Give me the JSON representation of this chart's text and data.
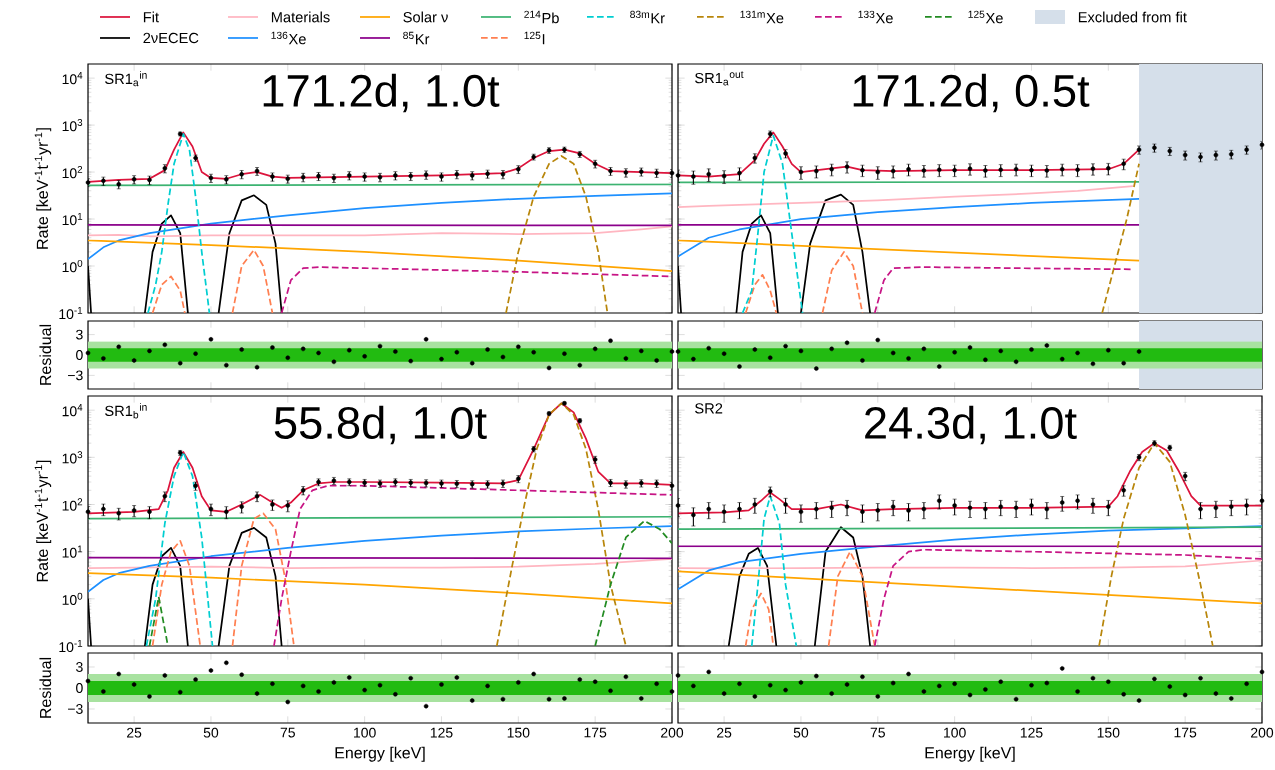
{
  "chart_data": [
    {
      "type": "line",
      "title": "171.2d, 1.0t",
      "annotations": [
        "SR1$_{a}$$^{in}$"
      ],
      "ylabel": "Rate [keV$^{-1}$t$^{-1}$yr$^{-1}$]",
      "log": "y",
      "xlim": [
        10,
        200
      ],
      "ylim": [
        0.1,
        20000
      ],
      "xticks": [
        25,
        50,
        75,
        100,
        125,
        150,
        175,
        200
      ],
      "yticks": [
        {
          "value": 0.1,
          "label": "10$^{-1}$"
        },
        {
          "value": 1,
          "label": "10$^{0}$"
        },
        {
          "value": 10,
          "label": "10$^{1}$"
        },
        {
          "value": 100,
          "label": "10$^{2}$"
        },
        {
          "value": 1000,
          "label": "10$^{3}$"
        },
        {
          "value": 10000,
          "label": "10$^{4}$"
        }
      ],
      "tick_labels": "y",
      "series": [
        {
          "color": "#dc143c",
          "x": [
            10,
            20,
            30,
            35,
            38,
            41,
            44,
            47,
            50,
            55,
            60,
            65,
            70,
            75,
            100,
            125,
            145,
            150,
            155,
            160,
            165,
            170,
            175,
            180,
            190,
            200
          ],
          "values": [
            62,
            68,
            72,
            110,
            300,
            700,
            350,
            100,
            75,
            72,
            90,
            100,
            80,
            75,
            80,
            85,
            95,
            120,
            200,
            280,
            300,
            250,
            150,
            105,
            100,
            95
          ]
        },
        {
          "color": "#000000",
          "x": [
            10,
            11,
            20,
            28.5,
            31,
            34,
            37,
            40,
            42.5,
            48,
            52.5,
            56,
            60,
            64,
            68,
            71,
            73
          ],
          "values": [
            1.0,
            0.1,
            null,
            0.1,
            2,
            8,
            12,
            5,
            0.1,
            null,
            0.1,
            5,
            25,
            32,
            20,
            3,
            0.1
          ]
        },
        {
          "color": "#ffb6c1",
          "x": [
            10,
            20,
            30,
            50,
            75,
            100,
            125,
            150,
            175,
            190,
            200
          ],
          "values": [
            4.5,
            4.6,
            4.3,
            4.5,
            4.5,
            4.5,
            5,
            4.8,
            5,
            6,
            7
          ]
        },
        {
          "color": "#1e90ff",
          "x": [
            10,
            15,
            20,
            30,
            50,
            75,
            100,
            125,
            150,
            175,
            200
          ],
          "values": [
            1.4,
            2.5,
            3.5,
            5,
            8,
            12,
            17,
            22,
            27,
            31,
            35
          ]
        },
        {
          "color": "#ffa500",
          "x": [
            10,
            50,
            100,
            150,
            200
          ],
          "values": [
            3.5,
            2.8,
            2,
            1.3,
            0.78
          ]
        },
        {
          "color": "#8b008b",
          "x": [
            10,
            200
          ],
          "values": [
            7.5,
            7.3
          ]
        },
        {
          "color": "#3cb371",
          "x": [
            10,
            200
          ],
          "values": [
            52,
            55
          ]
        },
        {
          "color": "#ff7f50",
          "line_style": "dashed",
          "x": [
            31,
            34,
            37,
            40,
            41.5,
            50,
            57,
            60,
            64,
            67,
            70
          ],
          "values": [
            0.1,
            0.4,
            0.6,
            0.3,
            0.1,
            null,
            0.1,
            1,
            2.2,
            1,
            0.1
          ]
        },
        {
          "color": "#00ced1",
          "line_style": "dashed",
          "x": [
            29.5,
            32,
            34,
            36,
            38,
            41,
            43,
            45,
            47,
            49.5
          ],
          "values": [
            0.1,
            0.4,
            2,
            20,
            150,
            650,
            300,
            30,
            2,
            0.1
          ]
        },
        {
          "color": "#b8860b",
          "line_style": "dashed",
          "x": [
            146,
            150,
            155,
            160,
            164,
            168,
            172,
            176,
            179
          ],
          "values": [
            0.1,
            2,
            30,
            150,
            220,
            150,
            30,
            2,
            0.1
          ]
        },
        {
          "color": "#c71585",
          "line_style": "dashed",
          "x": [
            73,
            76,
            80,
            85,
            100,
            150,
            200
          ],
          "values": [
            0.1,
            0.5,
            0.9,
            0.95,
            0.9,
            0.75,
            0.6
          ]
        },
        {
          "type": "scatter",
          "color": "#000000",
          "x": [
            10,
            15,
            20,
            25,
            30,
            35,
            40,
            45,
            50,
            55,
            60,
            65,
            70,
            75,
            80,
            85,
            90,
            95,
            100,
            105,
            110,
            115,
            120,
            125,
            130,
            135,
            140,
            145,
            150,
            155,
            160,
            165,
            170,
            175,
            180,
            185,
            190,
            195,
            200
          ],
          "values": [
            60,
            65,
            55,
            70,
            68,
            120,
            650,
            200,
            75,
            70,
            90,
            105,
            80,
            72,
            78,
            82,
            75,
            85,
            80,
            78,
            85,
            82,
            88,
            80,
            90,
            85,
            92,
            90,
            115,
            210,
            290,
            300,
            240,
            150,
            105,
            98,
            102,
            96,
            95
          ],
          "errors": [
            12,
            13,
            11,
            14,
            14,
            24,
            60,
            30,
            15,
            14,
            18,
            20,
            16,
            14,
            16,
            16,
            15,
            17,
            16,
            16,
            17,
            16,
            18,
            16,
            18,
            17,
            18,
            18,
            22,
            30,
            40,
            40,
            35,
            28,
            20,
            20,
            20,
            19,
            19
          ]
        }
      ]
    },
    {
      "type": "line",
      "title": "171.2d, 0.5t",
      "annotations": [
        "SR1$_{a}$$^{out}$"
      ],
      "log": "y",
      "xlim": [
        10,
        200
      ],
      "ylim": [
        0.1,
        20000
      ],
      "xticks": [
        25,
        50,
        75,
        100,
        125,
        150,
        175,
        200
      ],
      "yticks": [
        0.1,
        1,
        10,
        100,
        1000,
        10000
      ],
      "tick_labels": false,
      "bands": [
        {
          "axis": "x",
          "from": 160,
          "to": 200,
          "label": "Excluded from fit",
          "color": "#d5dfea"
        }
      ],
      "series": [
        {
          "color": "#dc143c",
          "x": [
            10,
            20,
            30,
            35,
            38,
            41,
            44,
            47,
            50,
            60,
            65,
            70,
            80,
            100,
            125,
            150,
            155,
            160
          ],
          "values": [
            85,
            80,
            90,
            180,
            400,
            700,
            350,
            150,
            100,
            120,
            130,
            110,
            105,
            110,
            110,
            115,
            150,
            300
          ]
        },
        {
          "color": "#000000",
          "x": [
            10,
            11,
            20,
            29,
            31,
            34,
            37,
            40,
            42.5,
            46,
            50,
            53,
            58,
            63,
            67,
            70,
            72.5
          ],
          "values": [
            1.0,
            0.1,
            null,
            0.1,
            2,
            8,
            12,
            5,
            0.1,
            null,
            0.1,
            3,
            25,
            33,
            20,
            2,
            0.1
          ]
        },
        {
          "color": "#ffb6c1",
          "x": [
            10,
            20,
            30,
            50,
            75,
            100,
            125,
            140,
            158
          ],
          "values": [
            18,
            19,
            20,
            22,
            25,
            30,
            35,
            40,
            50
          ]
        },
        {
          "color": "#1e90ff",
          "x": [
            10,
            20,
            30,
            50,
            75,
            100,
            125,
            160
          ],
          "values": [
            1.6,
            4,
            6,
            10,
            14,
            18,
            22,
            27
          ]
        },
        {
          "color": "#ffa500",
          "x": [
            10,
            160
          ],
          "values": [
            3.5,
            1.3
          ]
        },
        {
          "color": "#8b008b",
          "x": [
            10,
            160
          ],
          "values": [
            7.5,
            7.5
          ]
        },
        {
          "color": "#3cb371",
          "x": [
            10,
            160
          ],
          "values": [
            60,
            62
          ]
        },
        {
          "color": "#ff7f50",
          "line_style": "dashed",
          "x": [
            32,
            35,
            37.5,
            40,
            42,
            50,
            57,
            60,
            64,
            67,
            70
          ],
          "values": [
            0.1,
            0.4,
            0.65,
            0.3,
            0.1,
            null,
            0.1,
            0.8,
            2,
            1,
            0.1
          ]
        },
        {
          "color": "#00ced1",
          "line_style": "dashed",
          "x": [
            31,
            34,
            36,
            38,
            41,
            44,
            47,
            50.5
          ],
          "values": [
            0.1,
            0.3,
            5,
            100,
            600,
            150,
            5,
            0.1
          ]
        },
        {
          "color": "#b8860b",
          "line_style": "dashed",
          "x": [
            148,
            152,
            156,
            160
          ],
          "values": [
            0.1,
            1,
            10,
            150
          ]
        },
        {
          "color": "#c71585",
          "line_style": "dashed",
          "x": [
            74,
            77,
            80,
            90,
            120,
            158
          ],
          "values": [
            0.1,
            0.5,
            0.9,
            0.95,
            0.9,
            0.85
          ]
        },
        {
          "type": "scatter",
          "color": "#000000",
          "x": [
            10,
            15,
            20,
            25,
            30,
            35,
            40,
            45,
            50,
            55,
            60,
            65,
            70,
            75,
            80,
            85,
            90,
            95,
            100,
            105,
            110,
            115,
            120,
            125,
            130,
            135,
            140,
            145,
            150,
            155,
            160,
            165,
            170,
            175,
            180,
            185,
            190,
            195,
            200
          ],
          "values": [
            85,
            80,
            90,
            82,
            95,
            200,
            650,
            250,
            100,
            105,
            115,
            130,
            110,
            100,
            105,
            115,
            108,
            112,
            110,
            118,
            108,
            112,
            115,
            110,
            108,
            115,
            112,
            118,
            120,
            150,
            300,
            330,
            280,
            230,
            210,
            230,
            240,
            300,
            380
          ],
          "errors": [
            25,
            25,
            27,
            25,
            28,
            45,
            100,
            50,
            30,
            30,
            32,
            35,
            30,
            30,
            30,
            32,
            30,
            32,
            30,
            32,
            30,
            32,
            32,
            30,
            30,
            32,
            32,
            32,
            33,
            38,
            60,
            65,
            55,
            50,
            45,
            50,
            50,
            60,
            70
          ]
        }
      ]
    },
    {
      "type": "scatter",
      "ylabel": "Residual",
      "xlim": [
        10,
        200
      ],
      "ylim": [
        -5,
        5
      ],
      "xticks": [
        25,
        50,
        75,
        100,
        125,
        150,
        175,
        200
      ],
      "yticks": [
        3,
        0,
        {
          "value": -3,
          "label": "−3"
        }
      ],
      "tick_labels": "y",
      "bands": [
        {
          "axis": "y",
          "from": -2,
          "to": 2,
          "color": "#a8e2a0"
        },
        {
          "axis": "y",
          "from": -1,
          "to": 1,
          "color": "#22bb11"
        }
      ],
      "series": [
        {
          "color": "#000000",
          "x": [
            10,
            15,
            20,
            25,
            30,
            35,
            40,
            45,
            50,
            55,
            60,
            65,
            70,
            75,
            80,
            85,
            90,
            95,
            100,
            105,
            110,
            115,
            120,
            125,
            130,
            135,
            140,
            145,
            150,
            155,
            160,
            165,
            170,
            175,
            180,
            185,
            190,
            195,
            200
          ],
          "values": [
            0.3,
            -0.5,
            1.2,
            -0.8,
            0.6,
            1.5,
            -1.2,
            0.2,
            2.3,
            -1.5,
            0.8,
            -1.8,
            1.1,
            -0.4,
            0.9,
            0.3,
            -1,
            0.7,
            -0.2,
            1.3,
            0.5,
            -0.9,
            2.3,
            -0.6,
            0.4,
            -1.2,
            0.8,
            -0.3,
            1.2,
            0.4,
            -1.9,
            0.2,
            -1.5,
            0.9,
            2.1,
            -0.5,
            0.6,
            -0.8,
            0.5
          ]
        }
      ]
    },
    {
      "type": "scatter",
      "xlim": [
        10,
        200
      ],
      "ylim": [
        -5,
        5
      ],
      "xticks": [
        25,
        50,
        75,
        100,
        125,
        150,
        175,
        200
      ],
      "yticks": [
        3,
        0,
        -3
      ],
      "tick_labels": false,
      "bands": [
        {
          "axis": "x",
          "from": 160,
          "to": 200,
          "color": "#d5dfea"
        },
        {
          "axis": "y",
          "from": -2,
          "to": 2,
          "color": "#a8e2a0"
        },
        {
          "axis": "y",
          "from": -1,
          "to": 1,
          "color": "#22bb11"
        }
      ],
      "series": [
        {
          "color": "#000000",
          "x": [
            10,
            15,
            20,
            25,
            30,
            35,
            40,
            45,
            50,
            55,
            60,
            65,
            70,
            75,
            80,
            85,
            90,
            95,
            100,
            105,
            110,
            115,
            120,
            125,
            130,
            135,
            140,
            145,
            150,
            155,
            160
          ],
          "values": [
            0.5,
            -0.6,
            1.0,
            0.2,
            -1.7,
            0.8,
            -0.4,
            1.3,
            0.6,
            -2.0,
            0.9,
            1.8,
            -0.8,
            2.2,
            0.3,
            -0.5,
            0.9,
            -1.7,
            0.4,
            1.1,
            -0.7,
            0.6,
            -1.0,
            0.8,
            1.4,
            -0.6,
            0.3,
            -1.3,
            0.7,
            -1.2,
            0.5
          ]
        }
      ]
    },
    {
      "type": "line",
      "title": "55.8d, 1.0t",
      "annotations": [
        "SR1$_{b}$$^{in}$"
      ],
      "ylabel": "Rate [keV$^{-1}$t$^{-1}$yr$^{-1}$]",
      "log": "y",
      "legend": "top",
      "xlim": [
        10,
        200
      ],
      "ylim": [
        0.1,
        20000
      ],
      "xticks": [
        25,
        50,
        75,
        100,
        125,
        150,
        175,
        200
      ],
      "yticks": [
        {
          "value": 0.1,
          "label": "10$^{-1}$"
        },
        {
          "value": 1,
          "label": "10$^{0}$"
        },
        {
          "value": 10,
          "label": "10$^{1}$"
        },
        {
          "value": 100,
          "label": "10$^{2}$"
        },
        {
          "value": 1000,
          "label": "10$^{3}$"
        },
        {
          "value": 10000,
          "label": "10$^{4}$"
        }
      ],
      "tick_labels": "y",
      "series": [
        {
          "name": "Fit",
          "color": "#dc143c",
          "x": [
            10,
            25,
            33,
            36,
            38,
            41,
            44,
            47,
            50,
            55,
            60,
            66,
            70,
            73,
            76,
            80,
            85,
            90,
            100,
            125,
            145,
            150,
            155,
            160,
            164,
            168,
            172,
            176,
            180,
            190,
            200
          ],
          "values": [
            65,
            70,
            80,
            200,
            600,
            1300,
            600,
            150,
            75,
            70,
            100,
            160,
            110,
            85,
            110,
            200,
            280,
            300,
            300,
            290,
            280,
            330,
            1500,
            8000,
            14000,
            9000,
            2500,
            500,
            280,
            280,
            260
          ]
        },
        {
          "name": "2νECEC",
          "color": "#000000",
          "x": [
            10,
            11,
            20,
            28.5,
            31,
            34,
            37,
            40,
            42.5,
            48,
            52.5,
            56,
            60,
            64,
            68,
            71,
            73
          ],
          "values": [
            1.0,
            0.1,
            null,
            0.1,
            2,
            8,
            12,
            5,
            0.1,
            null,
            0.1,
            5,
            25,
            32,
            20,
            3,
            0.1
          ]
        },
        {
          "name": "Materials",
          "color": "#ffb6c1",
          "x": [
            10,
            25,
            50,
            75,
            100,
            125,
            150,
            175,
            200
          ],
          "values": [
            4.5,
            4.6,
            4.8,
            4.5,
            4.6,
            4.6,
            4.8,
            5.5,
            7
          ]
        },
        {
          "name": "$^{136}$Xe",
          "color": "#1e90ff",
          "x": [
            10,
            15,
            20,
            30,
            50,
            75,
            100,
            125,
            150,
            175,
            200
          ],
          "values": [
            1.4,
            2.5,
            3.5,
            5,
            8,
            12,
            17,
            22,
            27,
            31,
            35
          ]
        },
        {
          "name": "Solar ν",
          "color": "#ffa500",
          "x": [
            10,
            50,
            100,
            150,
            200
          ],
          "values": [
            3.5,
            2.8,
            2,
            1.3,
            0.8
          ]
        },
        {
          "name": "$^{85}$Kr",
          "color": "#8b008b",
          "x": [
            10,
            200
          ],
          "values": [
            7.5,
            7.2
          ]
        },
        {
          "name": "$^{214}$Pb",
          "color": "#3cb371",
          "x": [
            10,
            200
          ],
          "values": [
            50,
            55
          ]
        },
        {
          "name": "$^{125}$I",
          "color": "#ff7f50",
          "line_style": "dashed",
          "x": [
            31,
            34,
            37,
            40,
            43,
            46.5,
            50,
            57,
            60,
            64,
            67,
            71,
            74,
            77
          ],
          "values": [
            0.1,
            2,
            10,
            17,
            5,
            0.1,
            null,
            0.1,
            5,
            50,
            65,
            30,
            3,
            0.1
          ]
        },
        {
          "name": "$^{83m}$Kr",
          "color": "#00ced1",
          "line_style": "dashed",
          "x": [
            29,
            32,
            35,
            38,
            41,
            44,
            47,
            50.5
          ],
          "values": [
            0.1,
            1,
            40,
            400,
            1300,
            400,
            20,
            0.1
          ]
        },
        {
          "name": "$^{131m}$Xe",
          "color": "#b8860b",
          "line_style": "dashed",
          "x": [
            143,
            148,
            152,
            156,
            160,
            164,
            168,
            172,
            176,
            180,
            185
          ],
          "values": [
            0.1,
            5,
            100,
            1500,
            8000,
            14000,
            8000,
            1500,
            80,
            2,
            0.1
          ]
        },
        {
          "name": "$^{133}$Xe",
          "color": "#c71585",
          "line_style": "dashed",
          "x": [
            70.5,
            73,
            76,
            79,
            83,
            88,
            100,
            150,
            200
          ],
          "values": [
            0.1,
            1,
            10,
            80,
            200,
            250,
            250,
            200,
            160
          ]
        },
        {
          "name": "$^{125}$Xe",
          "color": "#228b22",
          "line_style": "dashed",
          "x": [
            30,
            33,
            36,
            100,
            175,
            180,
            185,
            191,
            196,
            200
          ],
          "values": [
            0.1,
            1.1,
            0.1,
            null,
            0.1,
            2,
            20,
            45,
            30,
            15
          ]
        },
        {
          "type": "scatter",
          "color": "#000000",
          "x": [
            10,
            15,
            20,
            25,
            30,
            35,
            40,
            45,
            50,
            55,
            60,
            65,
            70,
            75,
            80,
            85,
            90,
            95,
            100,
            105,
            110,
            115,
            120,
            125,
            130,
            135,
            140,
            145,
            150,
            155,
            160,
            165,
            170,
            175,
            180,
            185,
            190,
            195,
            200
          ],
          "values": [
            70,
            80,
            65,
            75,
            70,
            150,
            1250,
            250,
            80,
            70,
            90,
            150,
            100,
            95,
            200,
            300,
            320,
            300,
            290,
            280,
            300,
            290,
            285,
            280,
            275,
            270,
            270,
            280,
            350,
            1500,
            8500,
            14000,
            6000,
            900,
            290,
            270,
            285,
            280,
            250
          ],
          "errors": [
            20,
            22,
            18,
            20,
            20,
            35,
            150,
            50,
            22,
            20,
            24,
            35,
            25,
            25,
            40,
            50,
            55,
            50,
            50,
            50,
            50,
            50,
            50,
            50,
            48,
            48,
            48,
            50,
            60,
            200,
            700,
            1000,
            600,
            150,
            50,
            48,
            50,
            50,
            45
          ]
        }
      ]
    },
    {
      "type": "line",
      "title": "24.3d, 1.0t",
      "annotations": [
        "SR2"
      ],
      "log": "y",
      "xlim": [
        10,
        200
      ],
      "ylim": [
        0.1,
        20000
      ],
      "xticks": [
        25,
        50,
        75,
        100,
        125,
        150,
        175,
        200
      ],
      "yticks": [
        0.1,
        1,
        10,
        100,
        1000,
        10000
      ],
      "tick_labels": false,
      "series": [
        {
          "color": "#dc143c",
          "x": [
            10,
            25,
            33,
            37,
            40,
            43,
            47,
            55,
            63,
            70,
            80,
            100,
            125,
            150,
            153,
            157,
            161,
            165,
            169,
            173,
            177,
            180,
            200
          ],
          "values": [
            65,
            68,
            75,
            120,
            180,
            130,
            80,
            80,
            100,
            75,
            80,
            85,
            85,
            90,
            150,
            500,
            1300,
            2000,
            1400,
            500,
            150,
            95,
            95
          ]
        },
        {
          "color": "#000000",
          "x": [
            26.5,
            30,
            33,
            36,
            39,
            42,
            48,
            54.5,
            58,
            63,
            67,
            70,
            72.5
          ],
          "values": [
            0.1,
            3,
            9,
            12,
            5,
            0.1,
            null,
            0.1,
            10,
            33,
            20,
            3,
            0.1
          ]
        },
        {
          "color": "#ffb6c1",
          "x": [
            10,
            25,
            50,
            75,
            100,
            125,
            150,
            175,
            200
          ],
          "values": [
            4.5,
            4.4,
            4.5,
            4.6,
            4.6,
            4.5,
            4.6,
            4.9,
            6.5
          ]
        },
        {
          "color": "#1e90ff",
          "x": [
            10,
            20,
            30,
            50,
            75,
            100,
            125,
            150,
            200
          ],
          "values": [
            1.6,
            4,
            6,
            9,
            13,
            18,
            23,
            28,
            35
          ]
        },
        {
          "color": "#ffa500",
          "x": [
            10,
            200
          ],
          "values": [
            3.8,
            0.8
          ]
        },
        {
          "color": "#8b008b",
          "x": [
            10,
            200
          ],
          "values": [
            13,
            13
          ]
        },
        {
          "color": "#3cb371",
          "x": [
            10,
            200
          ],
          "values": [
            30,
            33
          ]
        },
        {
          "color": "#ff7f50",
          "line_style": "dashed",
          "x": [
            32,
            34,
            37,
            39.5,
            41,
            50,
            59,
            62,
            66,
            70,
            74
          ],
          "values": [
            0.1,
            0.6,
            1.3,
            0.6,
            0.1,
            null,
            0.1,
            3,
            10,
            3,
            0.1
          ]
        },
        {
          "color": "#00ced1",
          "line_style": "dashed",
          "x": [
            34,
            36,
            38,
            40,
            43,
            45,
            48.5
          ],
          "values": [
            0.1,
            2,
            50,
            150,
            40,
            2,
            0.1
          ]
        },
        {
          "color": "#b8860b",
          "line_style": "dashed",
          "x": [
            147,
            151,
            155,
            160,
            165,
            170,
            175,
            180,
            184
          ],
          "values": [
            0.1,
            3,
            50,
            600,
            2000,
            800,
            60,
            2,
            0.1
          ]
        },
        {
          "color": "#c71585",
          "line_style": "dashed",
          "x": [
            74,
            77,
            80,
            85,
            90,
            125,
            175,
            200
          ],
          "values": [
            0.1,
            1,
            5,
            10,
            11,
            10,
            8.5,
            7
          ]
        },
        {
          "type": "scatter",
          "color": "#000000",
          "x": [
            10,
            15,
            20,
            25,
            30,
            35,
            40,
            45,
            50,
            55,
            60,
            65,
            70,
            75,
            80,
            85,
            90,
            95,
            100,
            105,
            110,
            115,
            120,
            125,
            130,
            135,
            140,
            145,
            150,
            155,
            160,
            165,
            170,
            175,
            180,
            185,
            190,
            195,
            200
          ],
          "values": [
            95,
            60,
            80,
            70,
            80,
            100,
            190,
            100,
            70,
            80,
            85,
            90,
            70,
            75,
            90,
            75,
            80,
            120,
            95,
            85,
            80,
            90,
            85,
            95,
            80,
            110,
            120,
            100,
            90,
            200,
            1000,
            2000,
            1600,
            400,
            80,
            85,
            90,
            95,
            120
          ],
          "errors": [
            40,
            25,
            30,
            28,
            30,
            35,
            45,
            35,
            28,
            30,
            32,
            32,
            28,
            30,
            32,
            30,
            30,
            40,
            35,
            32,
            30,
            32,
            32,
            35,
            30,
            38,
            40,
            35,
            32,
            50,
            150,
            250,
            200,
            80,
            30,
            32,
            32,
            35,
            40
          ]
        }
      ]
    },
    {
      "type": "scatter",
      "ylabel": "Residual",
      "xlabel": "Energy [keV]",
      "xlim": [
        10,
        200
      ],
      "ylim": [
        -5,
        5
      ],
      "xticks": [
        25,
        50,
        75,
        100,
        125,
        150,
        175,
        200
      ],
      "yticks": [
        3,
        0,
        {
          "value": -3,
          "label": "−3"
        }
      ],
      "bands": [
        {
          "axis": "y",
          "from": -2,
          "to": 2,
          "color": "#a8e2a0"
        },
        {
          "axis": "y",
          "from": -1,
          "to": 1,
          "color": "#22bb11"
        }
      ],
      "series": [
        {
          "color": "#000000",
          "x": [
            10,
            15,
            20,
            25,
            30,
            35,
            40,
            45,
            50,
            55,
            60,
            65,
            70,
            75,
            80,
            85,
            90,
            95,
            100,
            105,
            110,
            115,
            120,
            125,
            130,
            135,
            140,
            145,
            150,
            155,
            160,
            165,
            170,
            175,
            180,
            185,
            190,
            195,
            200
          ],
          "values": [
            1,
            -0.5,
            2,
            0.5,
            -1.2,
            1.8,
            -0.6,
            1.2,
            2.5,
            3.6,
            1.9,
            -0.8,
            0.6,
            -2,
            0.3,
            -0.5,
            0.8,
            1.5,
            -0.3,
            0.4,
            -0.9,
            1.4,
            -2.6,
            0.5,
            1.5,
            -1.8,
            0.3,
            -1.6,
            0.8,
            2,
            -1.6,
            -1.5,
            1.2,
            0.9,
            -0.4,
            1.6,
            -1.5,
            0.6,
            -0.5
          ]
        }
      ]
    },
    {
      "type": "scatter",
      "xlabel": "Energy [keV]",
      "xlim": [
        10,
        200
      ],
      "ylim": [
        -5,
        5
      ],
      "xticks": [
        25,
        50,
        75,
        100,
        125,
        150,
        175,
        200
      ],
      "yticks": [
        3,
        0,
        -3
      ],
      "tick_labels": "x",
      "bands": [
        {
          "axis": "y",
          "from": -2,
          "to": 2,
          "color": "#a8e2a0"
        },
        {
          "axis": "y",
          "from": -1,
          "to": 1,
          "color": "#22bb11"
        }
      ],
      "series": [
        {
          "color": "#000000",
          "x": [
            10,
            15,
            20,
            25,
            30,
            35,
            40,
            45,
            50,
            55,
            60,
            65,
            70,
            75,
            80,
            85,
            90,
            95,
            100,
            105,
            110,
            115,
            120,
            125,
            130,
            135,
            140,
            145,
            150,
            155,
            160,
            165,
            170,
            175,
            180,
            185,
            190,
            195,
            200
          ],
          "values": [
            1.8,
            0.3,
            2.3,
            -0.8,
            0.6,
            -1.2,
            0.4,
            -0.3,
            0.8,
            1.7,
            -0.8,
            0.5,
            1.6,
            -1.2,
            0.7,
            2,
            -0.5,
            0.3,
            0.6,
            -1.0,
            -0.2,
            0.9,
            -1.6,
            0.4,
            0.7,
            2.8,
            -0.5,
            1.4,
            0.9,
            -0.9,
            -1.8,
            1.3,
            0.2,
            -1.0,
            1.4,
            -0.8,
            -1.5,
            0.6,
            2.3
          ]
        }
      ]
    }
  ]
}
